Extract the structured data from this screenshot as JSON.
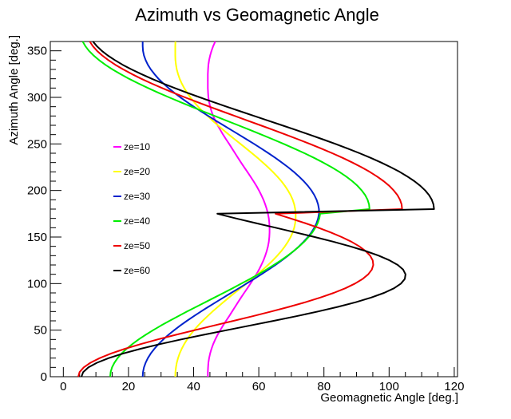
{
  "chart_data": {
    "type": "line",
    "title": "Azimuth vs Geomagnetic Angle",
    "xlabel": "Geomagnetic Angle [deg.]",
    "ylabel": "Azimuth Angle [deg.]",
    "xlim": [
      -4,
      121
    ],
    "ylim": [
      0,
      360
    ],
    "xticks": [
      0,
      20,
      40,
      60,
      80,
      100,
      120
    ],
    "yticks": [
      0,
      50,
      100,
      150,
      200,
      250,
      300,
      350
    ],
    "grid": false,
    "legend_position": "left",
    "azimuth_step_deg": 5,
    "series": [
      {
        "name": "ze=10",
        "color": "#ff00ff",
        "values": [
          44.35,
          44.36,
          44.42,
          44.54,
          44.75,
          45.06,
          45.48,
          46.0,
          46.64,
          47.36,
          48.17,
          49.04,
          49.95,
          50.89,
          51.82,
          52.72,
          53.62,
          54.56,
          55.52,
          56.49,
          57.44,
          58.37,
          59.25,
          60.06,
          60.79,
          61.43,
          61.99,
          62.45,
          62.81,
          63.08,
          63.24,
          63.31,
          63.31,
          63.24,
          63.08,
          62.81,
          62.45,
          61.99,
          61.43,
          60.79,
          60.06,
          59.25,
          58.37,
          57.44,
          56.49,
          55.52,
          54.56,
          53.62,
          52.72,
          51.82,
          50.89,
          49.95,
          49.04,
          48.17,
          47.36,
          46.64,
          46.0,
          45.48,
          45.06,
          44.75,
          44.54,
          44.42,
          44.36,
          44.35,
          44.35,
          44.36,
          44.42,
          44.54,
          44.75,
          45.06,
          45.48,
          46.0,
          46.64
        ]
      },
      {
        "name": "ze=20",
        "color": "#ffff00",
        "values": [
          34.35,
          34.4,
          34.57,
          34.83,
          35.21,
          35.71,
          36.34,
          37.1,
          37.98,
          39.0,
          40.14,
          41.4,
          42.77,
          44.25,
          45.81,
          47.44,
          49.1,
          50.83,
          52.6,
          54.38,
          56.16,
          57.92,
          59.63,
          61.28,
          62.85,
          64.32,
          65.68,
          66.92,
          68.02,
          68.97,
          69.77,
          70.41,
          70.88,
          71.18,
          71.31,
          71.31,
          71.18,
          70.88,
          70.41,
          69.77,
          68.97,
          68.02,
          66.92,
          65.68,
          64.32,
          62.85,
          61.28,
          59.63,
          57.92,
          56.16,
          54.38,
          52.6,
          50.83,
          49.1,
          47.44,
          45.81,
          44.25,
          42.77,
          41.4,
          40.14,
          39.0,
          37.98,
          37.1,
          36.34,
          35.71,
          35.21,
          34.83,
          34.57,
          34.4,
          34.35,
          34.35,
          34.35,
          34.4
        ]
      },
      {
        "name": "ze=30",
        "color": "#0022cc",
        "values": [
          24.36,
          24.46,
          24.76,
          25.26,
          25.96,
          26.86,
          27.95,
          29.22,
          30.67,
          32.28,
          34.04,
          35.93,
          37.94,
          40.05,
          42.24,
          44.5,
          46.81,
          49.16,
          51.52,
          53.88,
          56.23,
          58.54,
          60.8,
          62.99,
          65.09,
          67.09,
          68.98,
          70.74,
          72.35,
          73.8,
          75.08,
          76.17,
          77.06,
          77.74,
          78.21,
          78.47,
          78.47,
          78.21,
          77.74,
          77.06,
          76.17,
          75.08,
          73.8,
          72.35,
          70.74,
          68.98,
          67.09,
          65.09,
          62.99,
          60.8,
          58.54,
          56.23,
          53.88,
          51.52,
          49.16,
          46.81,
          44.5,
          42.24,
          40.05,
          37.94,
          35.93,
          34.04,
          32.28,
          30.67,
          29.22,
          27.95,
          26.86,
          25.96,
          25.26,
          24.76,
          24.46,
          24.36,
          24.36
        ]
      },
      {
        "name": "ze=40",
        "color": "#00ee00",
        "values": [
          14.38,
          14.52,
          14.95,
          15.67,
          16.66,
          17.92,
          19.43,
          21.17,
          23.12,
          25.26,
          27.57,
          30.02,
          32.59,
          35.25,
          37.99,
          40.77,
          43.58,
          46.39,
          49.19,
          51.95,
          54.66,
          57.3,
          59.85,
          62.29,
          64.61,
          66.8,
          68.84,
          70.72,
          72.43,
          73.96,
          75.3,
          76.44,
          77.37,
          78.09,
          78.58,
          78.85,
          94.0,
          93.85,
          93.4,
          92.66,
          91.62,
          90.3,
          88.7,
          86.83,
          84.71,
          82.35,
          79.77,
          76.99,
          74.03,
          70.91,
          67.65,
          64.28,
          60.82,
          57.29,
          53.71,
          50.1,
          46.49,
          42.9,
          39.35,
          35.86,
          32.46,
          29.17,
          26.01,
          23.0,
          20.17,
          17.53,
          15.1,
          12.91,
          10.96,
          9.28,
          7.87,
          6.75,
          5.93
        ]
      },
      {
        "name": "ze=50",
        "color": "#ee0000",
        "values": [
          4.58,
          5.0,
          6.26,
          8.33,
          11.17,
          14.73,
          18.94,
          23.71,
          28.94,
          34.52,
          40.34,
          46.29,
          52.26,
          58.14,
          63.83,
          69.24,
          74.29,
          78.9,
          83.01,
          86.57,
          89.54,
          91.89,
          93.61,
          94.69,
          95.14,
          94.96,
          94.17,
          92.79,
          90.85,
          88.39,
          85.44,
          82.05,
          78.27,
          74.15,
          69.75,
          65.13,
          104.0,
          103.84,
          103.36,
          102.56,
          101.45,
          100.04,
          98.32,
          96.32,
          94.05,
          91.52,
          88.75,
          85.76,
          82.57,
          79.2,
          75.68,
          72.03,
          68.27,
          64.43,
          60.53,
          56.6,
          52.66,
          48.74,
          44.87,
          41.07,
          37.36,
          33.77,
          30.32,
          27.04,
          23.94,
          21.05,
          18.39,
          15.97,
          13.81,
          11.93,
          10.34,
          9.06,
          8.1
        ]
      },
      {
        "name": "ze=60",
        "color": "#000000",
        "values": [
          5.56,
          6.1,
          7.71,
          10.35,
          13.95,
          18.44,
          23.71,
          29.66,
          36.15,
          43.03,
          50.17,
          57.4,
          64.57,
          71.54,
          78.15,
          84.26,
          89.75,
          94.51,
          98.46,
          101.52,
          103.65,
          104.83,
          105.05,
          104.32,
          102.67,
          100.15,
          96.82,
          92.76,
          88.06,
          82.83,
          77.18,
          71.24,
          65.14,
          59.02,
          53.02,
          47.27,
          113.8,
          113.63,
          113.12,
          112.27,
          111.09,
          109.59,
          107.77,
          105.64,
          103.22,
          100.52,
          97.56,
          94.36,
          90.94,
          87.32,
          83.53,
          79.59,
          75.53,
          71.37,
          67.15,
          62.89,
          58.61,
          54.35,
          50.13,
          45.98,
          41.92,
          37.98,
          34.19,
          30.57,
          27.14,
          23.93,
          20.96,
          18.24,
          15.8,
          13.65,
          11.8,
          10.28,
          9.08
        ]
      }
    ]
  }
}
